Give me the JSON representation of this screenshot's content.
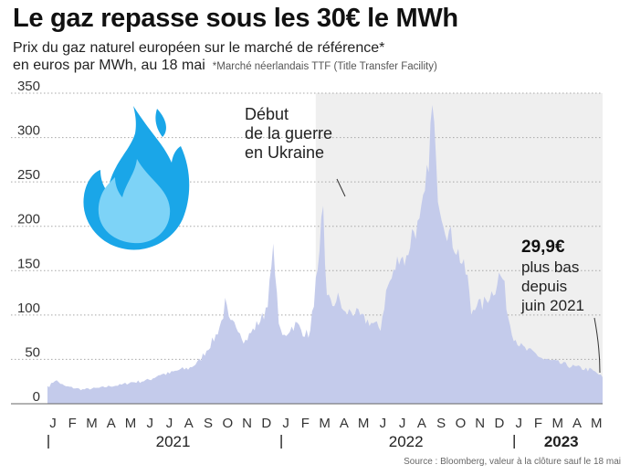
{
  "title": "Le gaz repasse sous les 30€ le MWh",
  "subtitle": {
    "line1": "Prix du gaz naturel européen sur le marché de référence*",
    "line2": "en euros par MWh, au 18 mai",
    "footnote": "*Marché néerlandais TTF (Title Transfer Facility)"
  },
  "source": "Source : Bloomberg, valeur à la clôture sauf le 18 mai",
  "colors": {
    "area": "#c4cbeb",
    "shade": "#efefef",
    "grid": "#a8a8a8",
    "flame_light": "#7dd3f7",
    "flame_dark": "#1aa6e8"
  },
  "icon": "flame-icon",
  "chart_data": {
    "type": "area",
    "x_unit": "month",
    "ylim": [
      0,
      350
    ],
    "yticks": [
      0,
      50,
      100,
      150,
      200,
      250,
      300,
      350
    ],
    "grid": "horizontal dotted",
    "month_labels": [
      "J",
      "F",
      "M",
      "A",
      "M",
      "J",
      "J",
      "A",
      "S",
      "O",
      "N",
      "D",
      "J",
      "F",
      "M",
      "A",
      "M",
      "J",
      "J",
      "A",
      "S",
      "O",
      "N",
      "D",
      "J",
      "F",
      "M",
      "A",
      "M"
    ],
    "year_labels": [
      {
        "label": "2021",
        "bold": false
      },
      {
        "label": "2022",
        "bold": false
      },
      {
        "label": "2023",
        "bold": true
      }
    ],
    "year_start_months": [
      "2021-01",
      "2022-01",
      "2023-01"
    ],
    "shaded_period": {
      "from": "2022-02-24",
      "to": "2023-05-18"
    },
    "series": [
      {
        "points": [
          [
            "2021-01-04",
            20
          ],
          [
            "2021-01-13",
            27
          ],
          [
            "2021-01-27",
            20
          ],
          [
            "2021-02-10",
            18
          ],
          [
            "2021-02-24",
            16
          ],
          [
            "2021-03-10",
            17
          ],
          [
            "2021-03-25",
            18
          ],
          [
            "2021-04-10",
            20
          ],
          [
            "2021-04-25",
            21
          ],
          [
            "2021-05-10",
            24
          ],
          [
            "2021-05-25",
            25
          ],
          [
            "2021-06-10",
            27
          ],
          [
            "2021-06-25",
            33
          ],
          [
            "2021-07-10",
            34
          ],
          [
            "2021-07-25",
            38
          ],
          [
            "2021-08-10",
            40
          ],
          [
            "2021-08-25",
            47
          ],
          [
            "2021-09-06",
            60
          ],
          [
            "2021-09-20",
            75
          ],
          [
            "2021-10-01",
            95
          ],
          [
            "2021-10-06",
            115
          ],
          [
            "2021-10-12",
            90
          ],
          [
            "2021-10-25",
            88
          ],
          [
            "2021-11-05",
            70
          ],
          [
            "2021-11-15",
            80
          ],
          [
            "2021-11-25",
            90
          ],
          [
            "2021-12-05",
            100
          ],
          [
            "2021-12-12",
            120
          ],
          [
            "2021-12-21",
            180
          ],
          [
            "2021-12-24",
            130
          ],
          [
            "2021-12-30",
            80
          ],
          [
            "2022-01-05",
            75
          ],
          [
            "2022-01-15",
            85
          ],
          [
            "2022-01-25",
            90
          ],
          [
            "2022-02-05",
            80
          ],
          [
            "2022-02-15",
            78
          ],
          [
            "2022-02-24",
            135
          ],
          [
            "2022-03-01",
            150
          ],
          [
            "2022-03-07",
            227
          ],
          [
            "2022-03-12",
            130
          ],
          [
            "2022-03-20",
            110
          ],
          [
            "2022-04-01",
            120
          ],
          [
            "2022-04-10",
            100
          ],
          [
            "2022-04-20",
            105
          ],
          [
            "2022-05-01",
            100
          ],
          [
            "2022-05-10",
            95
          ],
          [
            "2022-05-20",
            92
          ],
          [
            "2022-06-05",
            85
          ],
          [
            "2022-06-15",
            130
          ],
          [
            "2022-06-25",
            145
          ],
          [
            "2022-07-05",
            170
          ],
          [
            "2022-07-15",
            160
          ],
          [
            "2022-07-25",
            195
          ],
          [
            "2022-08-05",
            200
          ],
          [
            "2022-08-15",
            240
          ],
          [
            "2022-08-26",
            340
          ],
          [
            "2022-08-31",
            260
          ],
          [
            "2022-09-05",
            230
          ],
          [
            "2022-09-15",
            200
          ],
          [
            "2022-09-25",
            185
          ],
          [
            "2022-10-05",
            170
          ],
          [
            "2022-10-12",
            155
          ],
          [
            "2022-10-20",
            140
          ],
          [
            "2022-10-24",
            100
          ],
          [
            "2022-11-01",
            115
          ],
          [
            "2022-11-10",
            110
          ],
          [
            "2022-11-20",
            120
          ],
          [
            "2022-12-01",
            130
          ],
          [
            "2022-12-07",
            145
          ],
          [
            "2022-12-14",
            140
          ],
          [
            "2022-12-21",
            100
          ],
          [
            "2022-12-30",
            76
          ],
          [
            "2023-01-10",
            65
          ],
          [
            "2023-01-20",
            60
          ],
          [
            "2023-02-01",
            57
          ],
          [
            "2023-02-15",
            50
          ],
          [
            "2023-02-28",
            48
          ],
          [
            "2023-03-15",
            45
          ],
          [
            "2023-03-31",
            42
          ],
          [
            "2023-04-15",
            40
          ],
          [
            "2023-04-30",
            38
          ],
          [
            "2023-05-10",
            34
          ],
          [
            "2023-05-18",
            29.9
          ]
        ]
      }
    ],
    "annotations": [
      {
        "lines": [
          "Début",
          "de la guerre",
          "en Ukraine"
        ],
        "at": "2022-02-24"
      },
      {
        "value": "29,9€",
        "lines": [
          "plus bas",
          "depuis",
          "juin 2021"
        ],
        "at": "2023-05-18"
      }
    ]
  }
}
